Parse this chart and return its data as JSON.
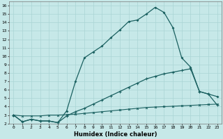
{
  "xlabel": "Humidex (Indice chaleur)",
  "bg_color": "#c6e8e8",
  "line_color": "#1a6060",
  "grid_color": "#aad4d4",
  "xlim": [
    -0.5,
    23.5
  ],
  "ylim": [
    2,
    16.5
  ],
  "xticks": [
    0,
    1,
    2,
    3,
    4,
    5,
    6,
    7,
    8,
    9,
    10,
    11,
    12,
    13,
    14,
    15,
    16,
    17,
    18,
    19,
    20,
    21,
    22,
    23
  ],
  "yticks": [
    2,
    3,
    4,
    5,
    6,
    7,
    8,
    9,
    10,
    11,
    12,
    13,
    14,
    15,
    16
  ],
  "curve1_x": [
    0,
    1,
    2,
    3,
    4,
    5,
    6,
    7,
    8,
    9,
    10,
    11,
    12,
    13,
    14,
    15,
    16,
    17,
    18,
    19,
    20,
    21,
    22,
    23
  ],
  "curve1_y": [
    3.0,
    2.2,
    2.5,
    2.3,
    2.3,
    2.1,
    3.5,
    7.0,
    9.8,
    10.5,
    11.2,
    12.2,
    13.1,
    14.1,
    14.3,
    15.0,
    15.8,
    15.2,
    13.4,
    9.8,
    8.7,
    5.8,
    5.5,
    5.2
  ],
  "curve2_x": [
    0,
    1,
    2,
    3,
    4,
    5,
    6,
    7,
    8,
    9,
    10,
    11,
    12,
    13,
    14,
    15,
    16,
    17,
    18,
    19,
    20,
    21,
    22,
    23
  ],
  "curve2_y": [
    3.0,
    2.2,
    2.5,
    2.3,
    2.3,
    2.1,
    2.9,
    3.4,
    3.8,
    4.3,
    4.8,
    5.3,
    5.8,
    6.3,
    6.8,
    7.3,
    7.6,
    7.9,
    8.1,
    8.3,
    8.5,
    5.8,
    5.5,
    4.2
  ],
  "curve3_x": [
    0,
    1,
    2,
    3,
    4,
    5,
    6,
    7,
    8,
    9,
    10,
    11,
    12,
    13,
    14,
    15,
    16,
    17,
    18,
    19,
    20,
    21,
    22,
    23
  ],
  "curve3_y": [
    3.0,
    2.9,
    2.9,
    2.9,
    3.0,
    3.0,
    3.05,
    3.1,
    3.2,
    3.3,
    3.4,
    3.5,
    3.6,
    3.7,
    3.8,
    3.9,
    3.95,
    4.0,
    4.05,
    4.1,
    4.15,
    4.2,
    4.25,
    4.3
  ]
}
